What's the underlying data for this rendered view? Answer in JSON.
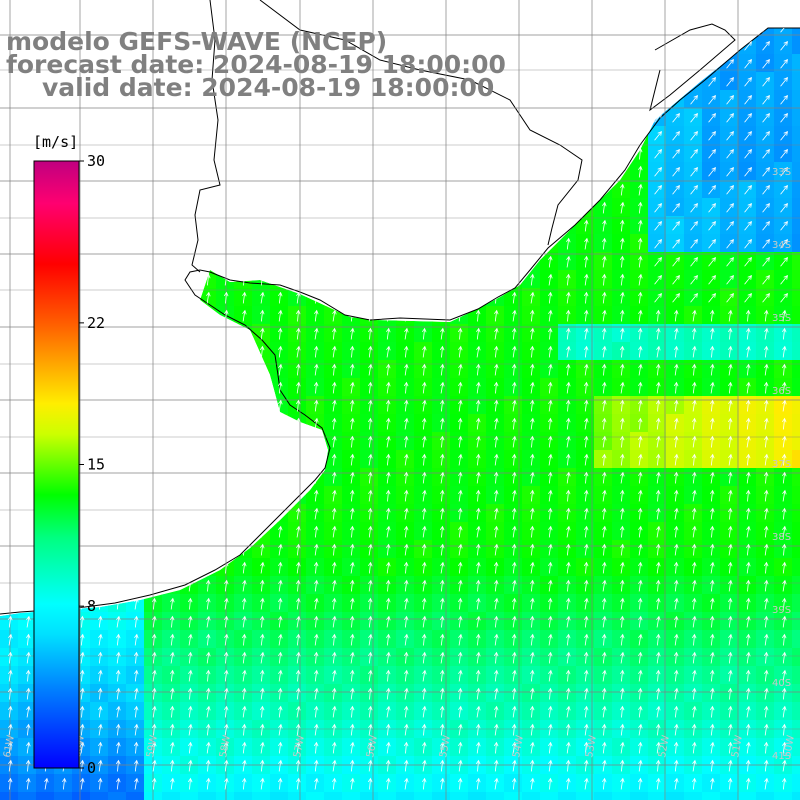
{
  "title": {
    "line1": "modelo GEFS-WAVE (NCEP)",
    "line2": "forecast date: 2024-08-19 18:00:00",
    "line3": "valid date: 2024-08-19 18:00:00"
  },
  "colorbar": {
    "unit": "[m/s]",
    "min": 0,
    "max": 30,
    "ticks": [
      {
        "value": 30,
        "label": "30"
      },
      {
        "value": 22,
        "label": "22"
      },
      {
        "value": 15,
        "label": "15"
      },
      {
        "value": 8,
        "label": "8"
      },
      {
        "value": 0,
        "label": "0"
      }
    ],
    "colors": [
      "#0000ff",
      "#0080ff",
      "#00c8ff",
      "#00ffff",
      "#00ff80",
      "#00ff00",
      "#80ff00",
      "#ffff00",
      "#ff8000",
      "#ff0000",
      "#ff0080",
      "#c00080"
    ]
  },
  "lat_labels": [
    "33S",
    "34S",
    "35S",
    "36S",
    "37S",
    "38S",
    "39S",
    "40S",
    "41S"
  ],
  "lon_labels": [
    "61W",
    "60W",
    "59W",
    "58W",
    "57W",
    "56W",
    "55W",
    "54W",
    "53W",
    "52W",
    "51W",
    "50W"
  ],
  "colors": {
    "land": "#ffffff",
    "grid": "#808080",
    "coast": "#000000",
    "arrow": "#ffffff",
    "title": "#808080"
  }
}
